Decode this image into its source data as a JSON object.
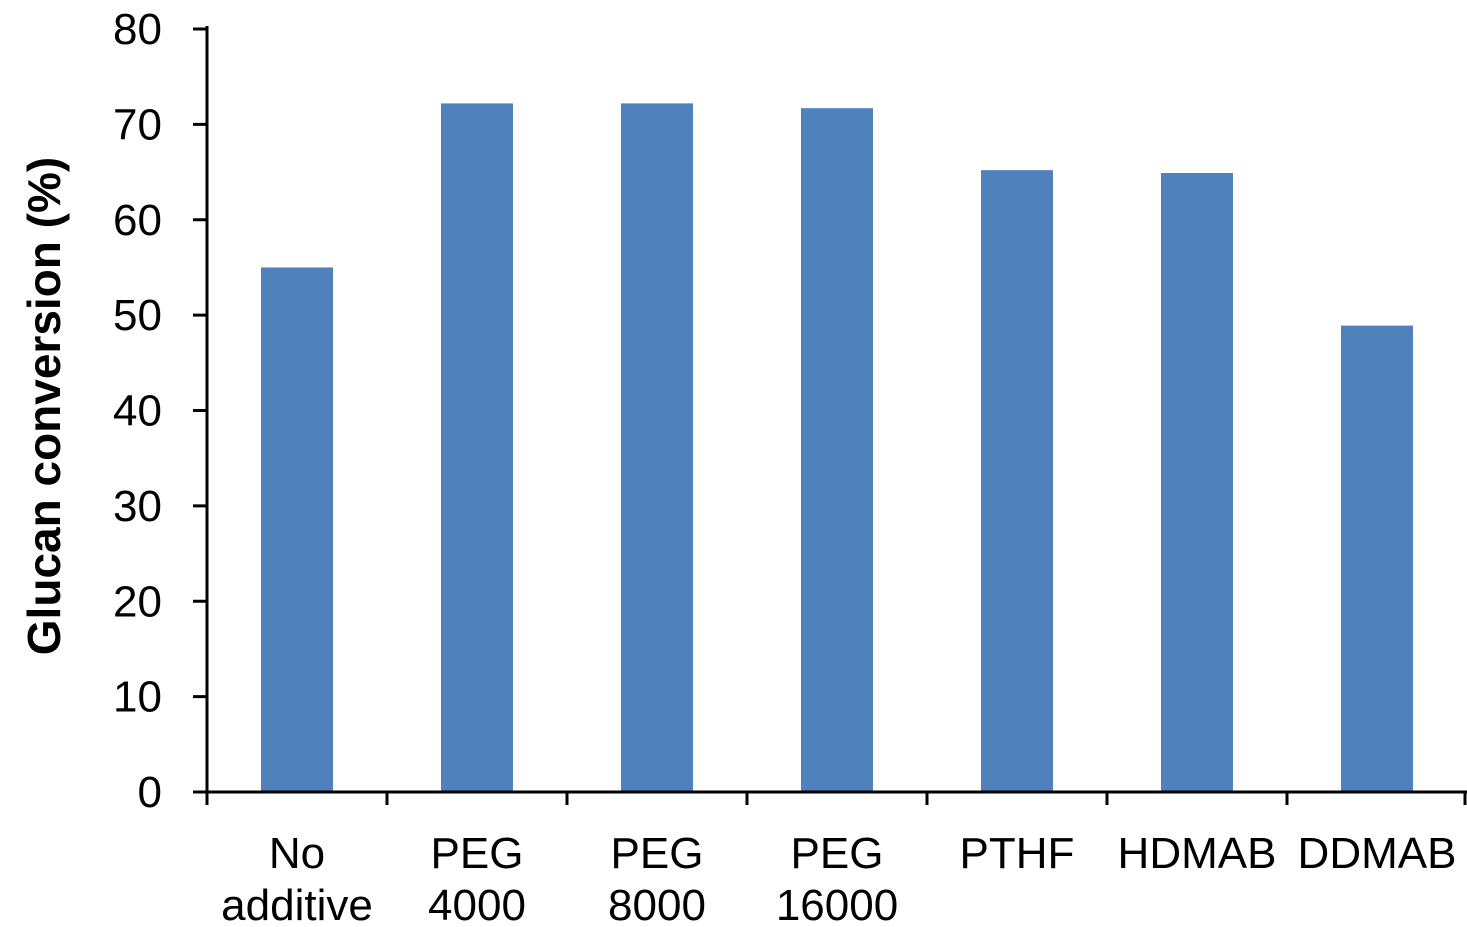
{
  "chart_data": {
    "type": "bar",
    "categories": [
      [
        "No",
        "additive"
      ],
      [
        "PEG",
        "4000"
      ],
      [
        "PEG",
        "8000"
      ],
      [
        "PEG",
        "16000"
      ],
      [
        "PTHF"
      ],
      [
        "HDMAB"
      ],
      [
        "DDMAB"
      ]
    ],
    "values": [
      55,
      72.2,
      72.2,
      71.7,
      65.2,
      64.9,
      48.9
    ],
    "xlabel": "",
    "ylabel": "Glucan conversion (%)",
    "ylim": [
      0,
      80
    ],
    "yticks": [
      0,
      10,
      20,
      30,
      40,
      50,
      60,
      70,
      80
    ],
    "grid": false,
    "legend": "none",
    "bar_color": "#4f81bd",
    "axis_color": "#000000"
  }
}
